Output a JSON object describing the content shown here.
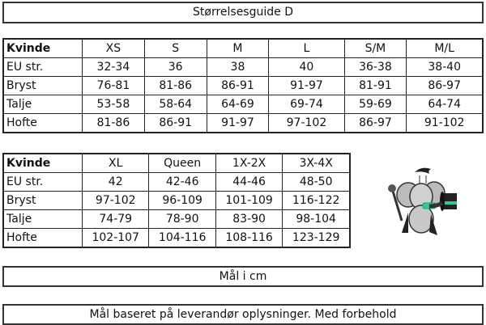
{
  "title": "Størrelsesguide D",
  "table1": {
    "headers": [
      "Kvinde",
      "XS",
      "S",
      "M",
      "L",
      "S/M",
      "M/L"
    ],
    "rows": [
      [
        "EU str.",
        "32-34",
        "36",
        "38",
        "40",
        "36-38",
        "38-40"
      ],
      [
        "Bryst",
        "76-81",
        "81-86",
        "86-91",
        "91-97",
        "81-91",
        "86-97"
      ],
      [
        "Talje",
        "53-58",
        "58-64",
        "64-69",
        "69-74",
        "59-69",
        "64-74"
      ],
      [
        "Hofte",
        "81-86",
        "86-91",
        "91-97",
        "97-102",
        "86-97",
        "91-102"
      ]
    ]
  },
  "table2": {
    "headers": [
      "Kvinde",
      "XL",
      "Queen",
      "1X-2X",
      "3X-4X"
    ],
    "rows": [
      [
        "EU str.",
        "42",
        "42-46",
        "44-46",
        "48-50"
      ],
      [
        "Bryst",
        "97-102",
        "96-109",
        "101-109",
        "116-122"
      ],
      [
        "Talje",
        "74-79",
        "78-90",
        "83-90",
        "98-104"
      ],
      [
        "Hofte",
        "102-107",
        "104-116",
        "108-116",
        "123-129"
      ]
    ]
  },
  "unit_note": "Mål i cm",
  "disclaimer": "Mål baseret på leverandør oplysninger. Med forbehold",
  "mascot": {
    "icon": "elephant-magician-mascot-icon",
    "accent": "#2ec99a"
  }
}
